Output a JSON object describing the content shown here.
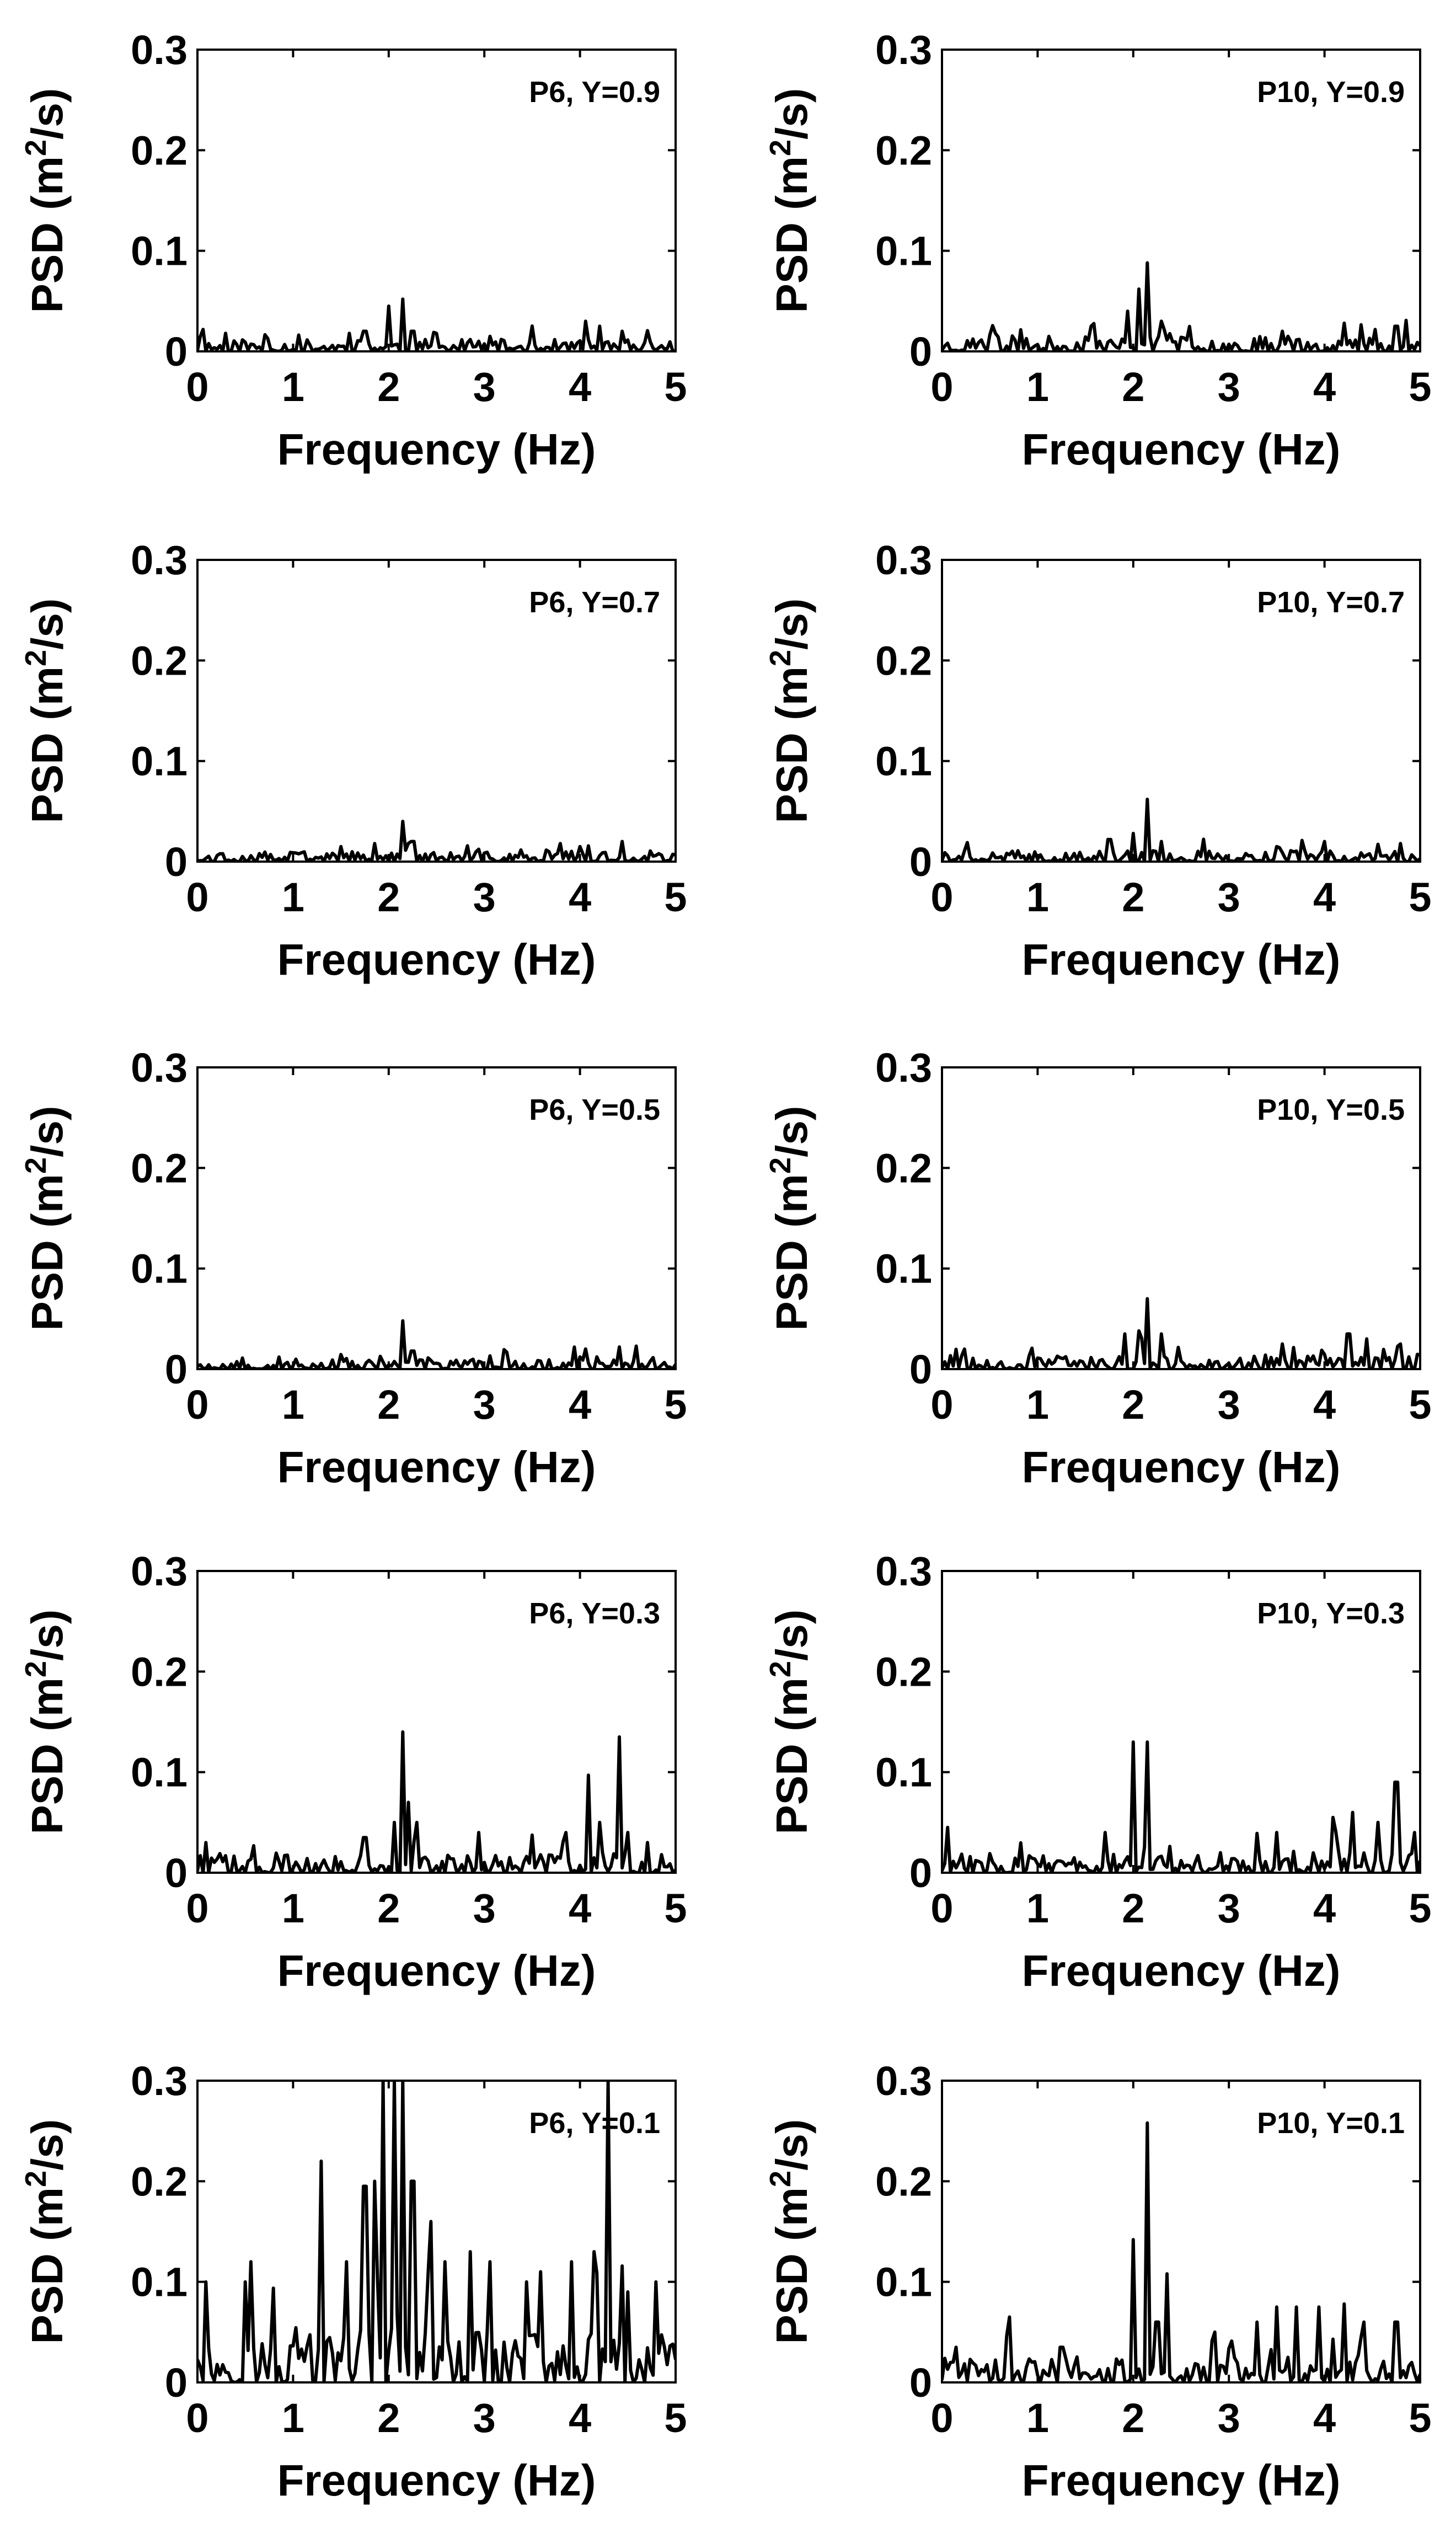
{
  "chart_data": [
    {
      "type": "line",
      "title": "P6, Y=0.9",
      "xlabel": "Frequency (Hz)",
      "ylabel": "PSD (m^2/s)",
      "ylabel_parts": {
        "prefix": "PSD (m",
        "sup": "2",
        "suffix": "/s)"
      },
      "xlim": [
        0,
        5
      ],
      "ylim": [
        0,
        0.3
      ],
      "xticks": [
        0,
        1,
        2,
        3,
        4,
        5
      ],
      "yticks": [
        0,
        0.1,
        0.2,
        0.3
      ],
      "series": [
        {
          "name": "PSD",
          "peaks": [
            [
              0.3,
              0.018
            ],
            [
              1.6,
              0.018
            ],
            [
              1.75,
              0.02
            ],
            [
              2.0,
              0.045
            ],
            [
              2.15,
              0.052
            ],
            [
              2.25,
              0.02
            ],
            [
              4.05,
              0.03
            ],
            [
              4.2,
              0.025
            ],
            [
              4.45,
              0.02
            ]
          ],
          "noise": 0.012,
          "seed": 11
        }
      ]
    },
    {
      "type": "line",
      "title": "P10, Y=0.9",
      "xlabel": "Frequency (Hz)",
      "ylabel": "PSD (m^2/s)",
      "ylabel_parts": {
        "prefix": "PSD (m",
        "sup": "2",
        "suffix": "/s)"
      },
      "xlim": [
        0,
        5
      ],
      "ylim": [
        0,
        0.3
      ],
      "xticks": [
        0,
        1,
        2,
        3,
        4,
        5
      ],
      "yticks": [
        0,
        0.1,
        0.2,
        0.3
      ],
      "series": [
        {
          "name": "PSD",
          "peaks": [
            [
              0.55,
              0.018
            ],
            [
              1.55,
              0.025
            ],
            [
              1.95,
              0.04
            ],
            [
              2.05,
              0.062
            ],
            [
              2.15,
              0.088
            ],
            [
              2.3,
              0.03
            ],
            [
              3.55,
              0.02
            ],
            [
              4.2,
              0.028
            ],
            [
              4.75,
              0.025
            ]
          ],
          "noise": 0.015,
          "seed": 23
        }
      ]
    },
    {
      "type": "line",
      "title": "P6, Y=0.7",
      "xlabel": "Frequency (Hz)",
      "ylabel": "PSD (m^2/s)",
      "ylabel_parts": {
        "prefix": "PSD (m",
        "sup": "2",
        "suffix": "/s)"
      },
      "xlim": [
        0,
        5
      ],
      "ylim": [
        0,
        0.3
      ],
      "xticks": [
        0,
        1,
        2,
        3,
        4,
        5
      ],
      "yticks": [
        0,
        0.1,
        0.2,
        0.3
      ],
      "series": [
        {
          "name": "PSD",
          "peaks": [
            [
              1.5,
              0.015
            ],
            [
              1.85,
              0.018
            ],
            [
              2.15,
              0.04
            ],
            [
              2.25,
              0.02
            ],
            [
              3.8,
              0.018
            ],
            [
              4.0,
              0.015
            ]
          ],
          "noise": 0.01,
          "seed": 37
        }
      ]
    },
    {
      "type": "line",
      "title": "P10, Y=0.7",
      "xlabel": "Frequency (Hz)",
      "ylabel": "PSD (m^2/s)",
      "ylabel_parts": {
        "prefix": "PSD (m",
        "sup": "2",
        "suffix": "/s)"
      },
      "xlim": [
        0,
        5
      ],
      "ylim": [
        0,
        0.3
      ],
      "xticks": [
        0,
        1,
        2,
        3,
        4,
        5
      ],
      "yticks": [
        0,
        0.1,
        0.2,
        0.3
      ],
      "series": [
        {
          "name": "PSD",
          "peaks": [
            [
              1.75,
              0.022
            ],
            [
              2.0,
              0.028
            ],
            [
              2.15,
              0.062
            ],
            [
              2.3,
              0.02
            ],
            [
              3.5,
              0.015
            ],
            [
              4.8,
              0.018
            ]
          ],
          "noise": 0.011,
          "seed": 41
        }
      ]
    },
    {
      "type": "line",
      "title": "P6, Y=0.5",
      "xlabel": "Frequency (Hz)",
      "ylabel": "PSD (m^2/s)",
      "ylabel_parts": {
        "prefix": "PSD (m",
        "sup": "2",
        "suffix": "/s)"
      },
      "xlim": [
        0,
        5
      ],
      "ylim": [
        0,
        0.3
      ],
      "xticks": [
        0,
        1,
        2,
        3,
        4,
        5
      ],
      "yticks": [
        0,
        0.1,
        0.2,
        0.3
      ],
      "series": [
        {
          "name": "PSD",
          "peaks": [
            [
              0.85,
              0.012
            ],
            [
              2.15,
              0.048
            ],
            [
              2.25,
              0.018
            ],
            [
              4.05,
              0.02
            ],
            [
              4.4,
              0.022
            ]
          ],
          "noise": 0.01,
          "seed": 53
        }
      ]
    },
    {
      "type": "line",
      "title": "P10, Y=0.5",
      "xlabel": "Frequency (Hz)",
      "ylabel": "PSD (m^2/s)",
      "ylabel_parts": {
        "prefix": "PSD (m",
        "sup": "2",
        "suffix": "/s)"
      },
      "xlim": [
        0,
        5
      ],
      "ylim": [
        0,
        0.3
      ],
      "xticks": [
        0,
        1,
        2,
        3,
        4,
        5
      ],
      "yticks": [
        0,
        0.1,
        0.2,
        0.3
      ],
      "series": [
        {
          "name": "PSD",
          "peaks": [
            [
              1.9,
              0.035
            ],
            [
              2.05,
              0.038
            ],
            [
              2.15,
              0.07
            ],
            [
              2.3,
              0.035
            ],
            [
              3.55,
              0.025
            ],
            [
              4.25,
              0.035
            ],
            [
              4.45,
              0.03
            ],
            [
              4.8,
              0.025
            ]
          ],
          "noise": 0.014,
          "seed": 67
        }
      ]
    },
    {
      "type": "line",
      "title": "P6, Y=0.3",
      "xlabel": "Frequency (Hz)",
      "ylabel": "PSD (m^2/s)",
      "ylabel_parts": {
        "prefix": "PSD (m",
        "sup": "2",
        "suffix": "/s)"
      },
      "xlim": [
        0,
        5
      ],
      "ylim": [
        0,
        0.3
      ],
      "xticks": [
        0,
        1,
        2,
        3,
        4,
        5
      ],
      "yticks": [
        0,
        0.1,
        0.2,
        0.3
      ],
      "series": [
        {
          "name": "PSD",
          "peaks": [
            [
              0.1,
              0.03
            ],
            [
              1.75,
              0.035
            ],
            [
              2.05,
              0.05
            ],
            [
              2.15,
              0.14
            ],
            [
              2.2,
              0.07
            ],
            [
              2.3,
              0.05
            ],
            [
              2.95,
              0.04
            ],
            [
              3.5,
              0.03
            ],
            [
              3.85,
              0.04
            ],
            [
              4.1,
              0.097
            ],
            [
              4.2,
              0.05
            ],
            [
              4.4,
              0.135
            ],
            [
              4.5,
              0.04
            ],
            [
              4.7,
              0.03
            ]
          ],
          "noise": 0.02,
          "seed": 79
        }
      ]
    },
    {
      "type": "line",
      "title": "P10, Y=0.3",
      "xlabel": "Frequency (Hz)",
      "ylabel": "PSD (m^2/s)",
      "ylabel_parts": {
        "prefix": "PSD (m",
        "sup": "2",
        "suffix": "/s)"
      },
      "xlim": [
        0,
        5
      ],
      "ylim": [
        0,
        0.3
      ],
      "xticks": [
        0,
        1,
        2,
        3,
        4,
        5
      ],
      "yticks": [
        0,
        0.1,
        0.2,
        0.3
      ],
      "series": [
        {
          "name": "PSD",
          "peaks": [
            [
              0.05,
              0.045
            ],
            [
              1.7,
              0.04
            ],
            [
              2.0,
              0.13
            ],
            [
              2.15,
              0.13
            ],
            [
              3.5,
              0.04
            ],
            [
              4.1,
              0.055
            ],
            [
              4.3,
              0.06
            ],
            [
              4.55,
              0.05
            ],
            [
              4.75,
              0.09
            ],
            [
              4.95,
              0.04
            ]
          ],
          "noise": 0.02,
          "seed": 83
        }
      ]
    },
    {
      "type": "line",
      "title": "P6, Y=0.1",
      "xlabel": "Frequency (Hz)",
      "ylabel": "PSD (m^2/s)",
      "ylabel_parts": {
        "prefix": "PSD (m",
        "sup": "2",
        "suffix": "/s)"
      },
      "xlim": [
        0,
        5
      ],
      "ylim": [
        0,
        0.3
      ],
      "xticks": [
        0,
        1,
        2,
        3,
        4,
        5
      ],
      "yticks": [
        0,
        0.1,
        0.2,
        0.3
      ],
      "series": [
        {
          "name": "PSD",
          "peaks": [
            [
              0.1,
              0.1
            ],
            [
              0.5,
              0.1
            ],
            [
              0.55,
              0.12
            ],
            [
              1.3,
              0.22
            ],
            [
              1.55,
              0.12
            ],
            [
              1.75,
              0.195
            ],
            [
              1.85,
              0.2
            ],
            [
              1.95,
              0.3
            ],
            [
              2.05,
              0.3
            ],
            [
              2.15,
              0.3
            ],
            [
              2.25,
              0.2
            ],
            [
              2.45,
              0.16
            ],
            [
              2.6,
              0.12
            ],
            [
              2.85,
              0.13
            ],
            [
              3.05,
              0.12
            ],
            [
              3.45,
              0.1
            ],
            [
              3.6,
              0.11
            ],
            [
              3.9,
              0.12
            ],
            [
              4.15,
              0.13
            ],
            [
              4.3,
              0.3
            ],
            [
              4.5,
              0.09
            ],
            [
              4.8,
              0.1
            ]
          ],
          "noise": 0.05,
          "seed": 97
        }
      ]
    },
    {
      "type": "line",
      "title": "P10, Y=0.1",
      "xlabel": "Frequency (Hz)",
      "ylabel": "PSD (m^2/s)",
      "ylabel_parts": {
        "prefix": "PSD (m",
        "sup": "2",
        "suffix": "/s)"
      },
      "xlim": [
        0,
        5
      ],
      "ylim": [
        0,
        0.3
      ],
      "xticks": [
        0,
        1,
        2,
        3,
        4,
        5
      ],
      "yticks": [
        0,
        0.1,
        0.2,
        0.3
      ],
      "series": [
        {
          "name": "PSD",
          "peaks": [
            [
              0.15,
              0.035
            ],
            [
              0.7,
              0.065
            ],
            [
              1.25,
              0.035
            ],
            [
              2.0,
              0.142
            ],
            [
              2.15,
              0.258
            ],
            [
              2.25,
              0.06
            ],
            [
              2.35,
              0.108
            ],
            [
              2.85,
              0.05
            ],
            [
              3.3,
              0.06
            ],
            [
              3.5,
              0.075
            ],
            [
              3.7,
              0.075
            ],
            [
              3.95,
              0.075
            ],
            [
              4.2,
              0.078
            ],
            [
              4.4,
              0.06
            ],
            [
              4.75,
              0.06
            ]
          ],
          "noise": 0.025,
          "seed": 101
        }
      ]
    }
  ]
}
